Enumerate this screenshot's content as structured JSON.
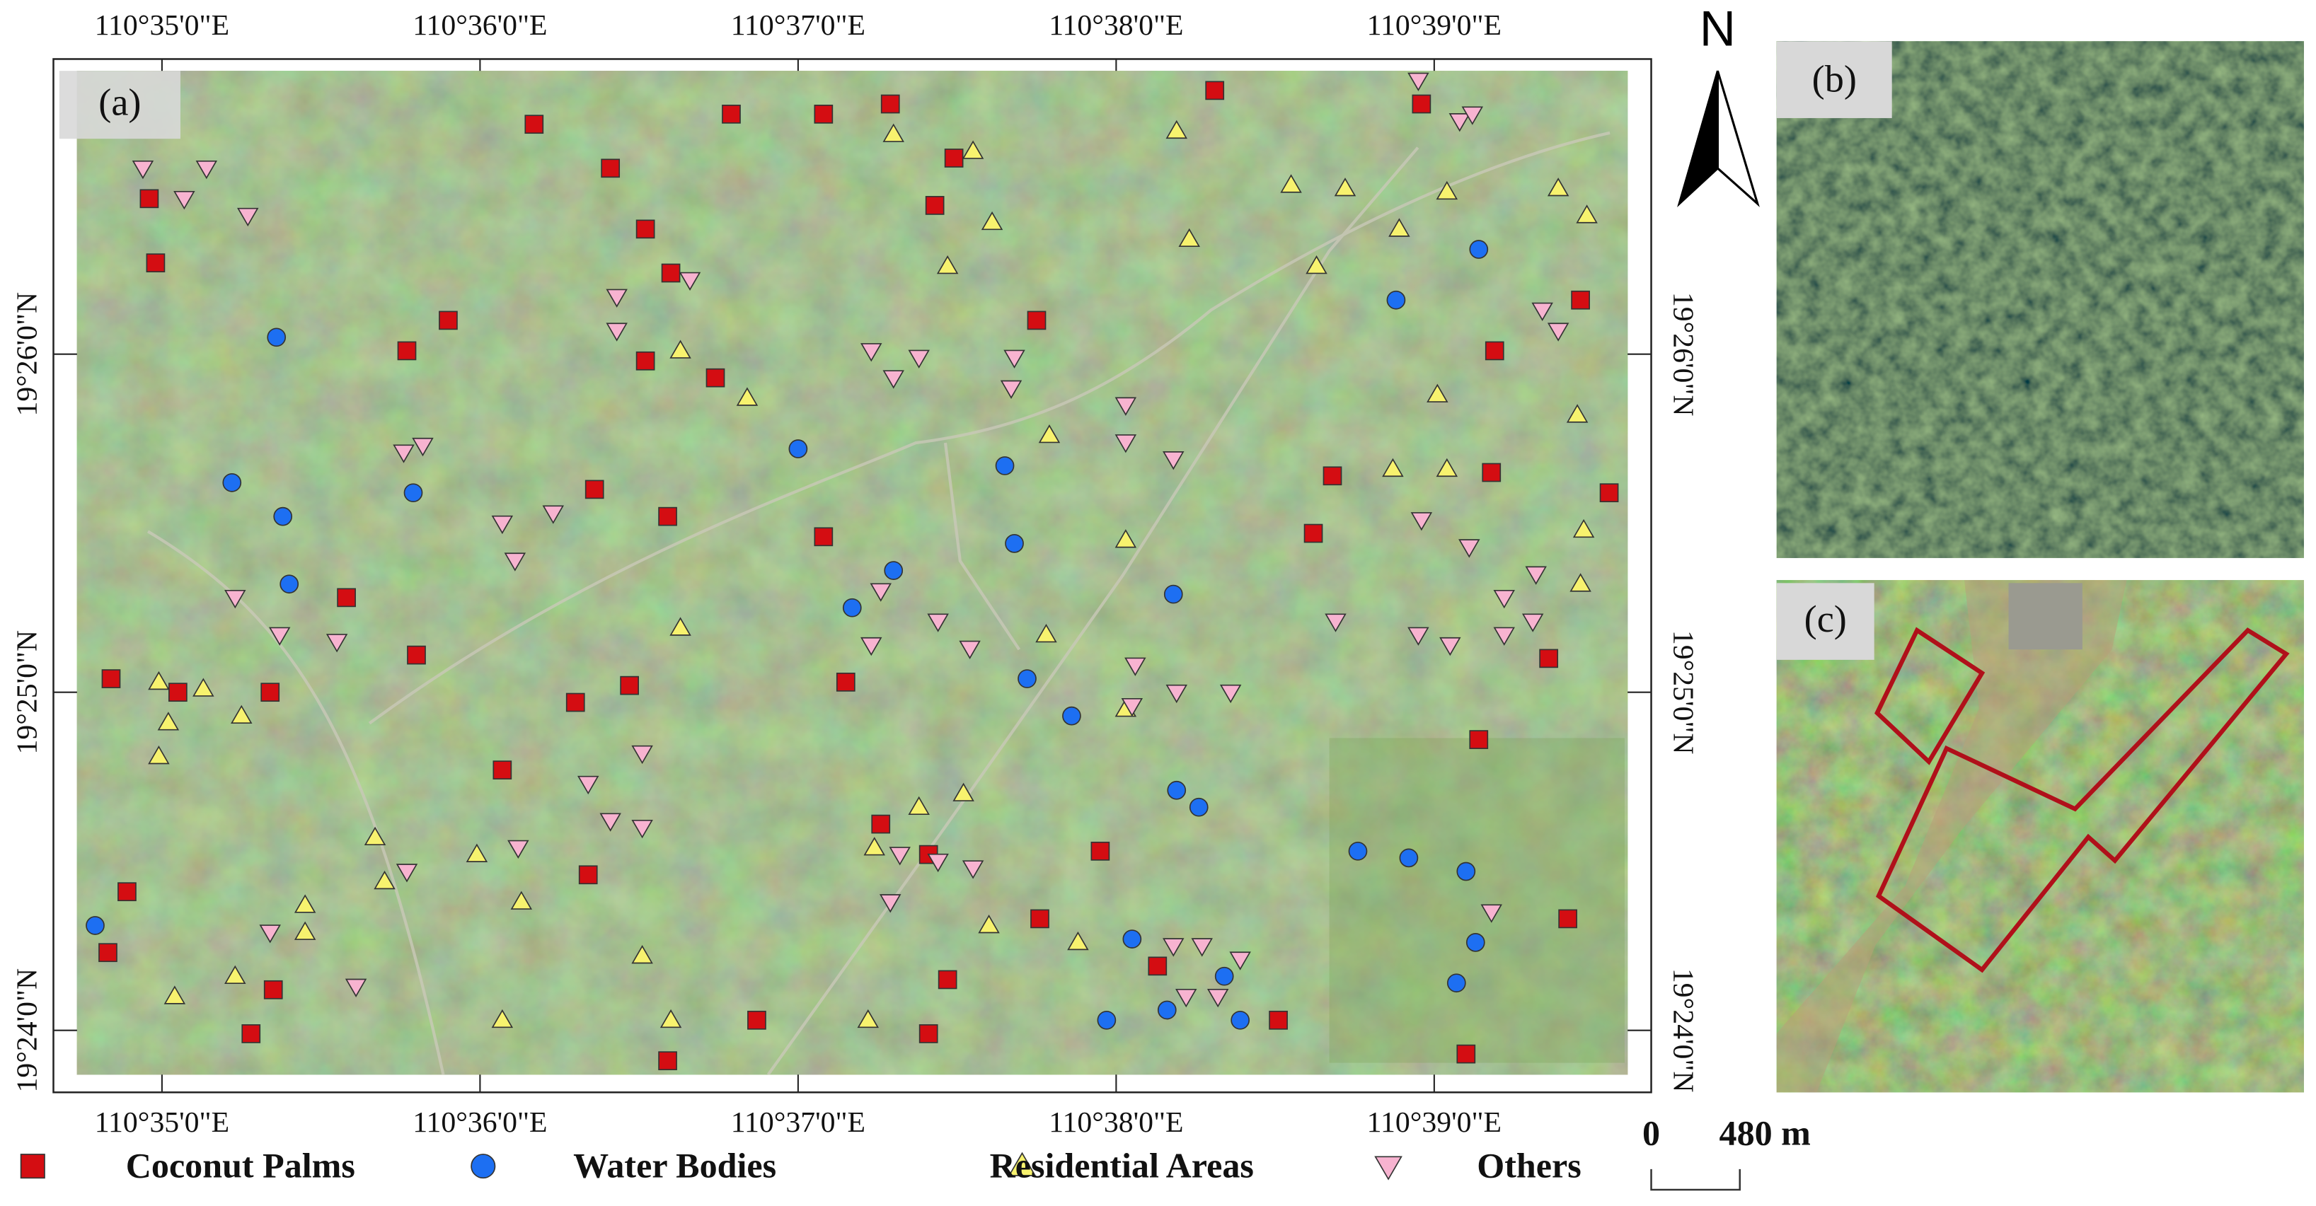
{
  "chart_data": {
    "type": "map",
    "panel_labels": [
      "(a)",
      "(b)",
      "(c)"
    ],
    "north_label": "N",
    "scale_labels": [
      "0",
      "480 m"
    ],
    "xlim": [
      34.733,
      39.608
    ],
    "ylim": [
      23.869,
      26.838
    ],
    "xticks": [
      {
        "value": 35,
        "label": "110°35'0\"E"
      },
      {
        "value": 36,
        "label": "110°36'0\"E"
      },
      {
        "value": 37,
        "label": "110°37'0\"E"
      },
      {
        "value": 38,
        "label": "110°38'0\"E"
      },
      {
        "value": 39,
        "label": "110°39'0\"E"
      }
    ],
    "yticks": [
      {
        "value": 24,
        "label": "19°24'0\"N"
      },
      {
        "value": 25,
        "label": "19°25'0\"N"
      },
      {
        "value": 26,
        "label": "19°26'0\"N"
      }
    ],
    "series": [
      {
        "name": "Coconut Palms",
        "color": "#d40d12",
        "marker": "square",
        "x": [
          34.96,
          34.98,
          36.79,
          37.08,
          37.29,
          37.49,
          37.43,
          36.41,
          36.52,
          36.6,
          36.52,
          36.74,
          35.77,
          35.9,
          36.17,
          38.31,
          37.75,
          39.46,
          39.19,
          38.68,
          38.62,
          39.18,
          39.55,
          39.36,
          37.08,
          36.59,
          36.36,
          35.58,
          35.8,
          34.84,
          35.05,
          35.34,
          36.3,
          36.47,
          36.07,
          36.34,
          37.26,
          37.41,
          37.15,
          37.95,
          37.76,
          38.13,
          37.47,
          36.87,
          36.59,
          37.41,
          38.51,
          39.14,
          39.42,
          39.1,
          34.83,
          34.89,
          35.35,
          35.28,
          38.96
        ],
        "y": [
          26.46,
          26.27,
          26.71,
          26.71,
          26.74,
          26.58,
          26.44,
          26.55,
          26.37,
          26.24,
          25.98,
          25.93,
          26.01,
          26.1,
          26.68,
          26.78,
          26.1,
          26.16,
          26.01,
          25.64,
          25.47,
          25.65,
          25.59,
          25.1,
          25.46,
          25.52,
          25.6,
          25.28,
          25.11,
          25.04,
          25.0,
          25.0,
          24.97,
          25.02,
          24.77,
          24.46,
          24.61,
          24.52,
          25.03,
          24.53,
          24.33,
          24.19,
          24.15,
          24.03,
          23.91,
          23.99,
          24.03,
          24.86,
          24.33,
          23.93,
          24.23,
          24.41,
          24.12,
          23.99,
          26.74
        ]
      },
      {
        "name": "Water Bodies",
        "color": "#1d6ff2",
        "marker": "circle",
        "x": [
          35.36,
          35.22,
          35.38,
          35.4,
          35.79,
          37.0,
          37.65,
          37.68,
          37.3,
          37.17,
          38.18,
          37.72,
          37.86,
          38.19,
          38.26,
          38.76,
          38.92,
          39.1,
          39.13,
          39.07,
          38.05,
          37.97,
          38.16,
          38.39,
          38.34,
          34.79,
          39.14,
          38.88
        ],
        "y": [
          26.05,
          25.62,
          25.52,
          25.32,
          25.59,
          25.72,
          25.67,
          25.44,
          25.36,
          25.25,
          25.29,
          25.04,
          24.93,
          24.71,
          24.66,
          24.53,
          24.51,
          24.47,
          24.26,
          24.14,
          24.27,
          24.03,
          24.06,
          24.03,
          24.16,
          24.31,
          26.31,
          26.16
        ]
      },
      {
        "name": "Residential Areas",
        "color": "#f7f26e",
        "marker": "triangle",
        "x": [
          37.3,
          37.55,
          37.61,
          37.47,
          38.19,
          38.55,
          38.72,
          39.04,
          39.39,
          39.48,
          38.63,
          38.89,
          38.23,
          36.84,
          36.63,
          37.79,
          39.01,
          39.45,
          38.87,
          39.04,
          39.47,
          39.46,
          38.03,
          36.63,
          37.78,
          34.99,
          35.13,
          35.02,
          34.99,
          35.25,
          35.67,
          35.7,
          35.99,
          36.13,
          35.45,
          35.45,
          35.23,
          35.04,
          36.51,
          36.6,
          36.07,
          37.22,
          37.6,
          37.88,
          38.03,
          37.52,
          37.24,
          37.38
        ],
        "y": [
          26.65,
          26.6,
          26.39,
          26.26,
          26.66,
          26.5,
          26.49,
          26.48,
          26.49,
          26.41,
          26.26,
          26.37,
          26.34,
          25.87,
          26.01,
          25.76,
          25.88,
          25.82,
          25.66,
          25.66,
          25.48,
          25.32,
          25.45,
          25.19,
          25.17,
          25.03,
          25.01,
          24.91,
          24.81,
          24.93,
          24.57,
          24.44,
          24.52,
          24.38,
          24.37,
          24.29,
          24.16,
          24.1,
          24.22,
          24.03,
          24.03,
          24.03,
          24.31,
          24.26,
          24.95,
          24.7,
          24.54,
          24.66
        ]
      },
      {
        "name": "Others",
        "color": "#f7b3d0",
        "marker": "triangle-down",
        "x": [
          34.94,
          35.14,
          35.07,
          35.27,
          36.43,
          36.43,
          36.66,
          37.23,
          37.3,
          37.38,
          37.68,
          37.67,
          38.03,
          38.03,
          38.18,
          35.76,
          35.82,
          36.07,
          36.23,
          36.11,
          35.23,
          35.37,
          35.55,
          37.26,
          37.44,
          37.54,
          37.23,
          38.06,
          38.19,
          38.36,
          38.05,
          38.69,
          38.95,
          39.05,
          39.22,
          39.32,
          39.31,
          38.96,
          39.11,
          39.22,
          39.34,
          39.39,
          38.95,
          39.08,
          39.12,
          36.34,
          36.41,
          36.51,
          36.51,
          37.32,
          37.44,
          37.55,
          37.29,
          38.18,
          38.27,
          38.39,
          38.22,
          38.32,
          35.34,
          35.61,
          35.77,
          36.12,
          39.18
        ],
        "y": [
          26.55,
          26.55,
          26.46,
          26.41,
          26.17,
          26.07,
          26.22,
          26.01,
          25.93,
          25.99,
          25.99,
          25.9,
          25.85,
          25.74,
          25.69,
          25.71,
          25.73,
          25.5,
          25.53,
          25.39,
          25.28,
          25.17,
          25.15,
          25.3,
          25.21,
          25.13,
          25.14,
          25.08,
          25.0,
          25.0,
          24.96,
          25.21,
          25.17,
          25.14,
          25.17,
          25.35,
          25.21,
          25.51,
          25.43,
          25.28,
          26.13,
          26.07,
          26.81,
          26.69,
          26.71,
          24.73,
          24.62,
          24.82,
          24.6,
          24.52,
          24.5,
          24.48,
          24.38,
          24.25,
          24.25,
          24.21,
          24.1,
          24.1,
          24.29,
          24.13,
          24.47,
          24.54,
          24.35
        ]
      }
    ]
  }
}
